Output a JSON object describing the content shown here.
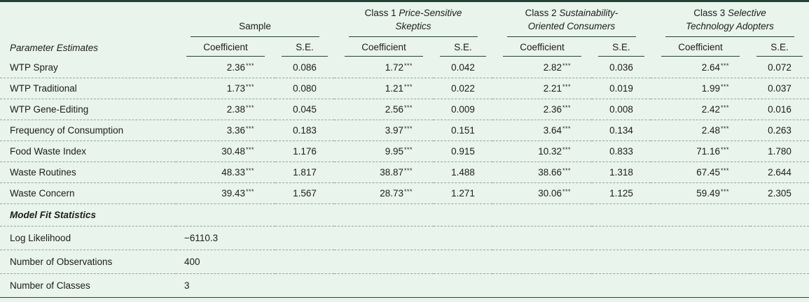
{
  "colors": {
    "background": "#e9f4ec",
    "rule": "#24423a",
    "dash": "#95a69b",
    "text": "#1c1c1c"
  },
  "header": {
    "param_label": "Parameter Estimates",
    "coef_label": "Coefficient",
    "se_label": "S.E.",
    "groups": [
      {
        "plain": "Sample",
        "it1": "",
        "it2": ""
      },
      {
        "plain": "Class 1",
        "it1": "Price-Sensitive",
        "it2": "Skeptics"
      },
      {
        "plain": "Class 2",
        "it1": "Sustainability-",
        "it2": "Oriented Consumers"
      },
      {
        "plain": "Class 3",
        "it1": "Selective",
        "it2": "Technology Adopters"
      }
    ]
  },
  "rows": [
    {
      "label": "WTP Spray",
      "coefs": [
        "2.36",
        "1.72",
        "2.82",
        "2.64"
      ],
      "stars": [
        "***",
        "***",
        "***",
        "***"
      ],
      "se": [
        "0.086",
        "0.042",
        "0.036",
        "0.072"
      ]
    },
    {
      "label": "WTP Traditional",
      "coefs": [
        "1.73",
        "1.21",
        "2.21",
        "1.99"
      ],
      "stars": [
        "***",
        "***",
        "***",
        "***"
      ],
      "se": [
        "0.080",
        "0.022",
        "0.019",
        "0.037"
      ]
    },
    {
      "label": "WTP Gene-Editing",
      "coefs": [
        "2.38",
        "2.56",
        "2.36",
        "2.42"
      ],
      "stars": [
        "***",
        "***",
        "***",
        "***"
      ],
      "se": [
        "0.045",
        "0.009",
        "0.008",
        "0.016"
      ]
    },
    {
      "label": "Frequency of Consumption",
      "coefs": [
        "3.36",
        "3.97",
        "3.64",
        "2.48"
      ],
      "stars": [
        "***",
        "***",
        "***",
        "***"
      ],
      "se": [
        "0.183",
        "0.151",
        "0.134",
        "0.263"
      ]
    },
    {
      "label": "Food Waste Index",
      "coefs": [
        "30.48",
        "9.95",
        "10.32",
        "71.16"
      ],
      "stars": [
        "***",
        "***",
        "***",
        "***"
      ],
      "se": [
        "1.176",
        "0.915",
        "0.833",
        "1.780"
      ]
    },
    {
      "label": "Waste Routines",
      "coefs": [
        "48.33",
        "38.87",
        "38.66",
        "67.45"
      ],
      "stars": [
        "***",
        "***",
        "***",
        "***"
      ],
      "se": [
        "1.817",
        "1.488",
        "1.318",
        "2.644"
      ]
    },
    {
      "label": "Waste Concern",
      "coefs": [
        "39.43",
        "28.73",
        "30.06",
        "59.49"
      ],
      "stars": [
        "***",
        "***",
        "***",
        "***"
      ],
      "se": [
        "1.567",
        "1.271",
        "1.125",
        "2.305"
      ]
    }
  ],
  "section_label": "Model Fit Statistics",
  "stats": [
    {
      "label": "Log Likelihood",
      "value": "−6110.3"
    },
    {
      "label": "Number of Observations",
      "value": "400"
    },
    {
      "label": "Number of Classes",
      "value": "3"
    }
  ]
}
